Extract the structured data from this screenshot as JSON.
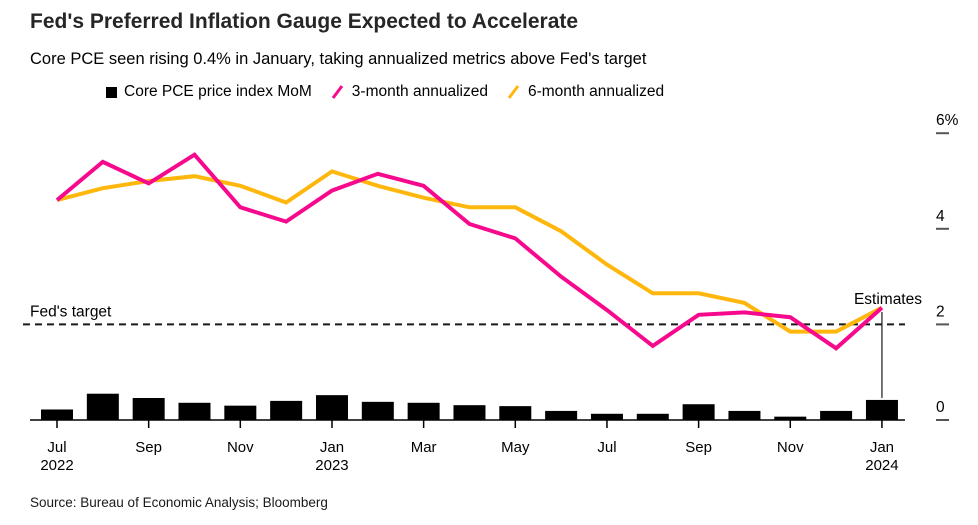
{
  "header": {
    "title": "Fed's Preferred Inflation Gauge Expected to Accelerate",
    "subtitle": "Core PCE seen rising 0.4% in January, taking annualized metrics above Fed's target"
  },
  "legend": {
    "items": [
      {
        "label": "Core PCE price index MoM",
        "marker": "square",
        "color": "#000000"
      },
      {
        "label": "3-month annualized",
        "marker": "slash",
        "color": "#f7098d"
      },
      {
        "label": "6-month annualized",
        "marker": "slash",
        "color": "#ffb70d"
      }
    ]
  },
  "chart_data": {
    "type": "bar",
    "subtype": "bar-plus-lines",
    "x": [
      "Jul 2022",
      "Aug 2022",
      "Sep 2022",
      "Oct 2022",
      "Nov 2022",
      "Dec 2022",
      "Jan 2023",
      "Feb 2023",
      "Mar 2023",
      "Apr 2023",
      "May 2023",
      "Jun 2023",
      "Jul 2023",
      "Aug 2023",
      "Sep 2023",
      "Oct 2023",
      "Nov 2023",
      "Dec 2023",
      "Jan 2024"
    ],
    "series": [
      {
        "name": "Core PCE price index MoM",
        "type": "bar",
        "color": "#000000",
        "values": [
          0.22,
          0.55,
          0.46,
          0.36,
          0.3,
          0.4,
          0.52,
          0.38,
          0.36,
          0.31,
          0.29,
          0.19,
          0.13,
          0.13,
          0.33,
          0.19,
          0.07,
          0.19,
          0.42
        ]
      },
      {
        "name": "3-month annualized",
        "type": "line",
        "color": "#f7098d",
        "values": [
          4.6,
          5.4,
          4.95,
          5.55,
          4.45,
          4.15,
          4.8,
          5.15,
          4.9,
          4.1,
          3.8,
          3.0,
          2.3,
          1.55,
          2.2,
          2.25,
          2.15,
          1.5,
          2.35
        ]
      },
      {
        "name": "6-month annualized",
        "type": "line",
        "color": "#ffb70d",
        "values": [
          4.6,
          4.85,
          5.0,
          5.1,
          4.9,
          4.55,
          5.2,
          4.9,
          4.65,
          4.45,
          4.45,
          3.95,
          3.25,
          2.65,
          2.65,
          2.45,
          1.85,
          1.85,
          2.35
        ]
      }
    ],
    "ylim": [
      0,
      6
    ],
    "y_ticks": [
      {
        "value": 6,
        "label": "6%"
      },
      {
        "value": 4,
        "label": "4"
      },
      {
        "value": 2,
        "label": "2"
      },
      {
        "value": 0,
        "label": "0"
      }
    ],
    "x_ticks": [
      {
        "index": 0,
        "month": "Jul",
        "year": "2022"
      },
      {
        "index": 2,
        "month": "Sep",
        "year": ""
      },
      {
        "index": 4,
        "month": "Nov",
        "year": ""
      },
      {
        "index": 6,
        "month": "Jan",
        "year": "2023"
      },
      {
        "index": 8,
        "month": "Mar",
        "year": ""
      },
      {
        "index": 10,
        "month": "May",
        "year": ""
      },
      {
        "index": 12,
        "month": "Jul",
        "year": ""
      },
      {
        "index": 14,
        "month": "Sep",
        "year": ""
      },
      {
        "index": 16,
        "month": "Nov",
        "year": ""
      },
      {
        "index": 18,
        "month": "Jan",
        "year": "2024"
      }
    ],
    "target_line": {
      "label": "Fed's target",
      "value": 2
    },
    "annotation": {
      "label": "Estimates",
      "index": 18
    },
    "legend_position": "top",
    "grid": false,
    "axis_color": "#000000"
  },
  "source": {
    "text": "Source: Bureau of Economic Analysis; Bloomberg"
  }
}
